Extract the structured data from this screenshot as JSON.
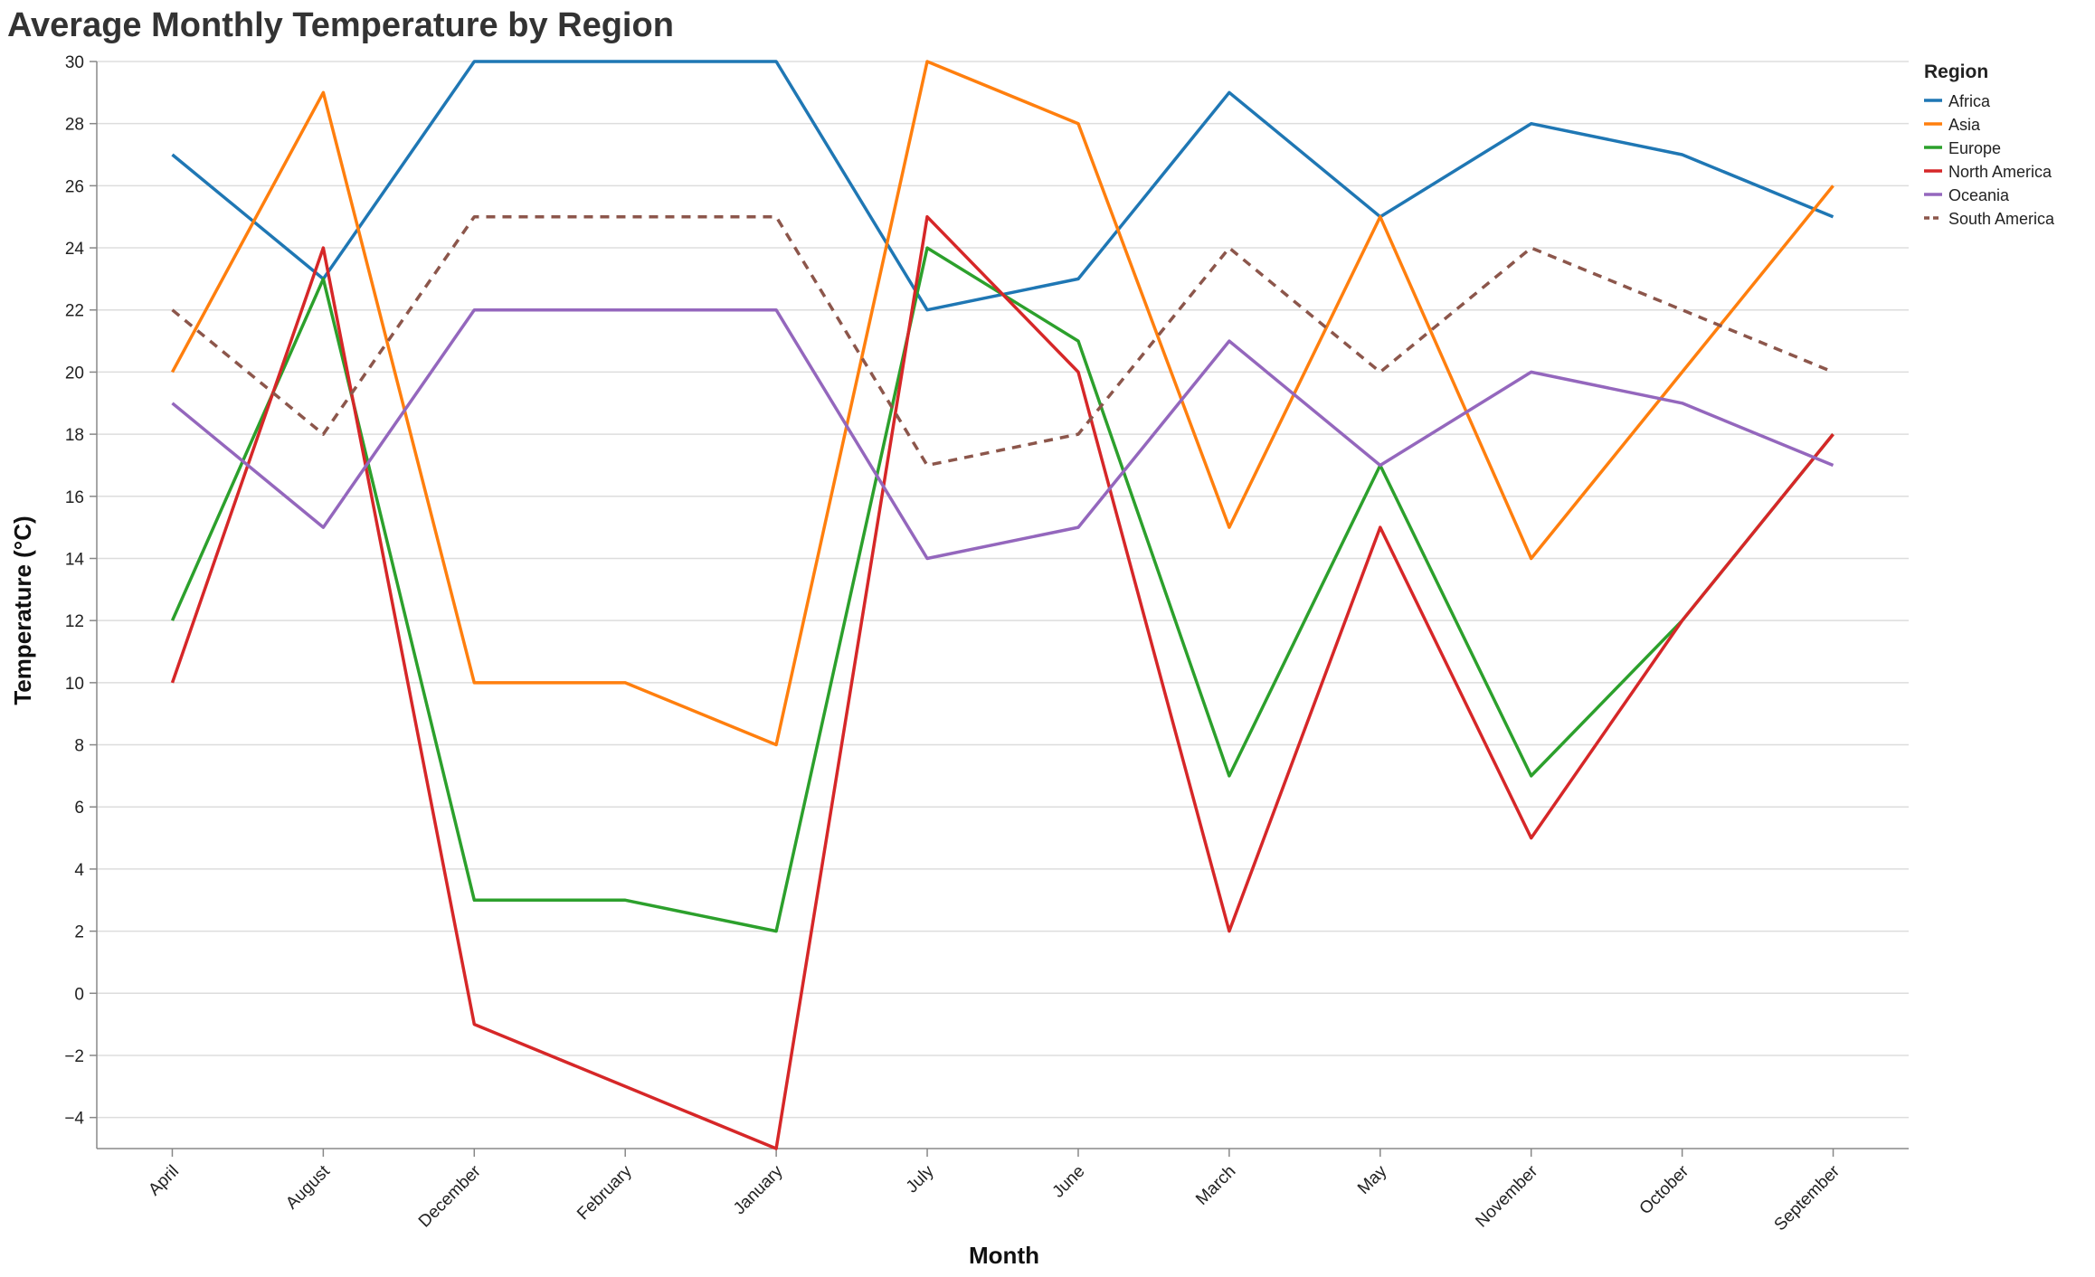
{
  "chart_data": {
    "type": "line",
    "title": "Average Monthly Temperature by Region",
    "xlabel": "Month",
    "ylabel": "Temperature (°C)",
    "ylim": [
      -5,
      30
    ],
    "yticks": [
      -4,
      -2,
      0,
      2,
      4,
      6,
      8,
      10,
      12,
      14,
      16,
      18,
      20,
      22,
      24,
      26,
      28,
      30
    ],
    "grid": true,
    "legend_title": "Region",
    "legend_position": "top-right",
    "categories": [
      "April",
      "August",
      "December",
      "February",
      "January",
      "July",
      "June",
      "March",
      "May",
      "November",
      "October",
      "September"
    ],
    "series": [
      {
        "name": "Africa",
        "color": "#1f77b4",
        "dashed": false,
        "values": [
          27,
          23,
          30,
          30,
          30,
          22,
          23,
          29,
          25,
          28,
          27,
          25
        ]
      },
      {
        "name": "Asia",
        "color": "#ff7f0e",
        "dashed": false,
        "values": [
          20,
          29,
          10,
          10,
          8,
          30,
          28,
          15,
          25,
          14,
          20,
          26
        ]
      },
      {
        "name": "Europe",
        "color": "#2ca02c",
        "dashed": false,
        "values": [
          12,
          23,
          3,
          3,
          2,
          24,
          21,
          7,
          17,
          7,
          12,
          18
        ]
      },
      {
        "name": "North America",
        "color": "#d62728",
        "dashed": false,
        "values": [
          10,
          24,
          -1,
          -3,
          -5,
          25,
          20,
          2,
          15,
          5,
          12,
          18
        ]
      },
      {
        "name": "Oceania",
        "color": "#9467bd",
        "dashed": false,
        "values": [
          19,
          15,
          22,
          22,
          22,
          14,
          15,
          21,
          17,
          20,
          19,
          17
        ]
      },
      {
        "name": "South America",
        "color": "#8c564b",
        "dashed": true,
        "values": [
          22,
          18,
          25,
          25,
          25,
          17,
          18,
          24,
          20,
          24,
          22,
          20
        ]
      }
    ]
  }
}
